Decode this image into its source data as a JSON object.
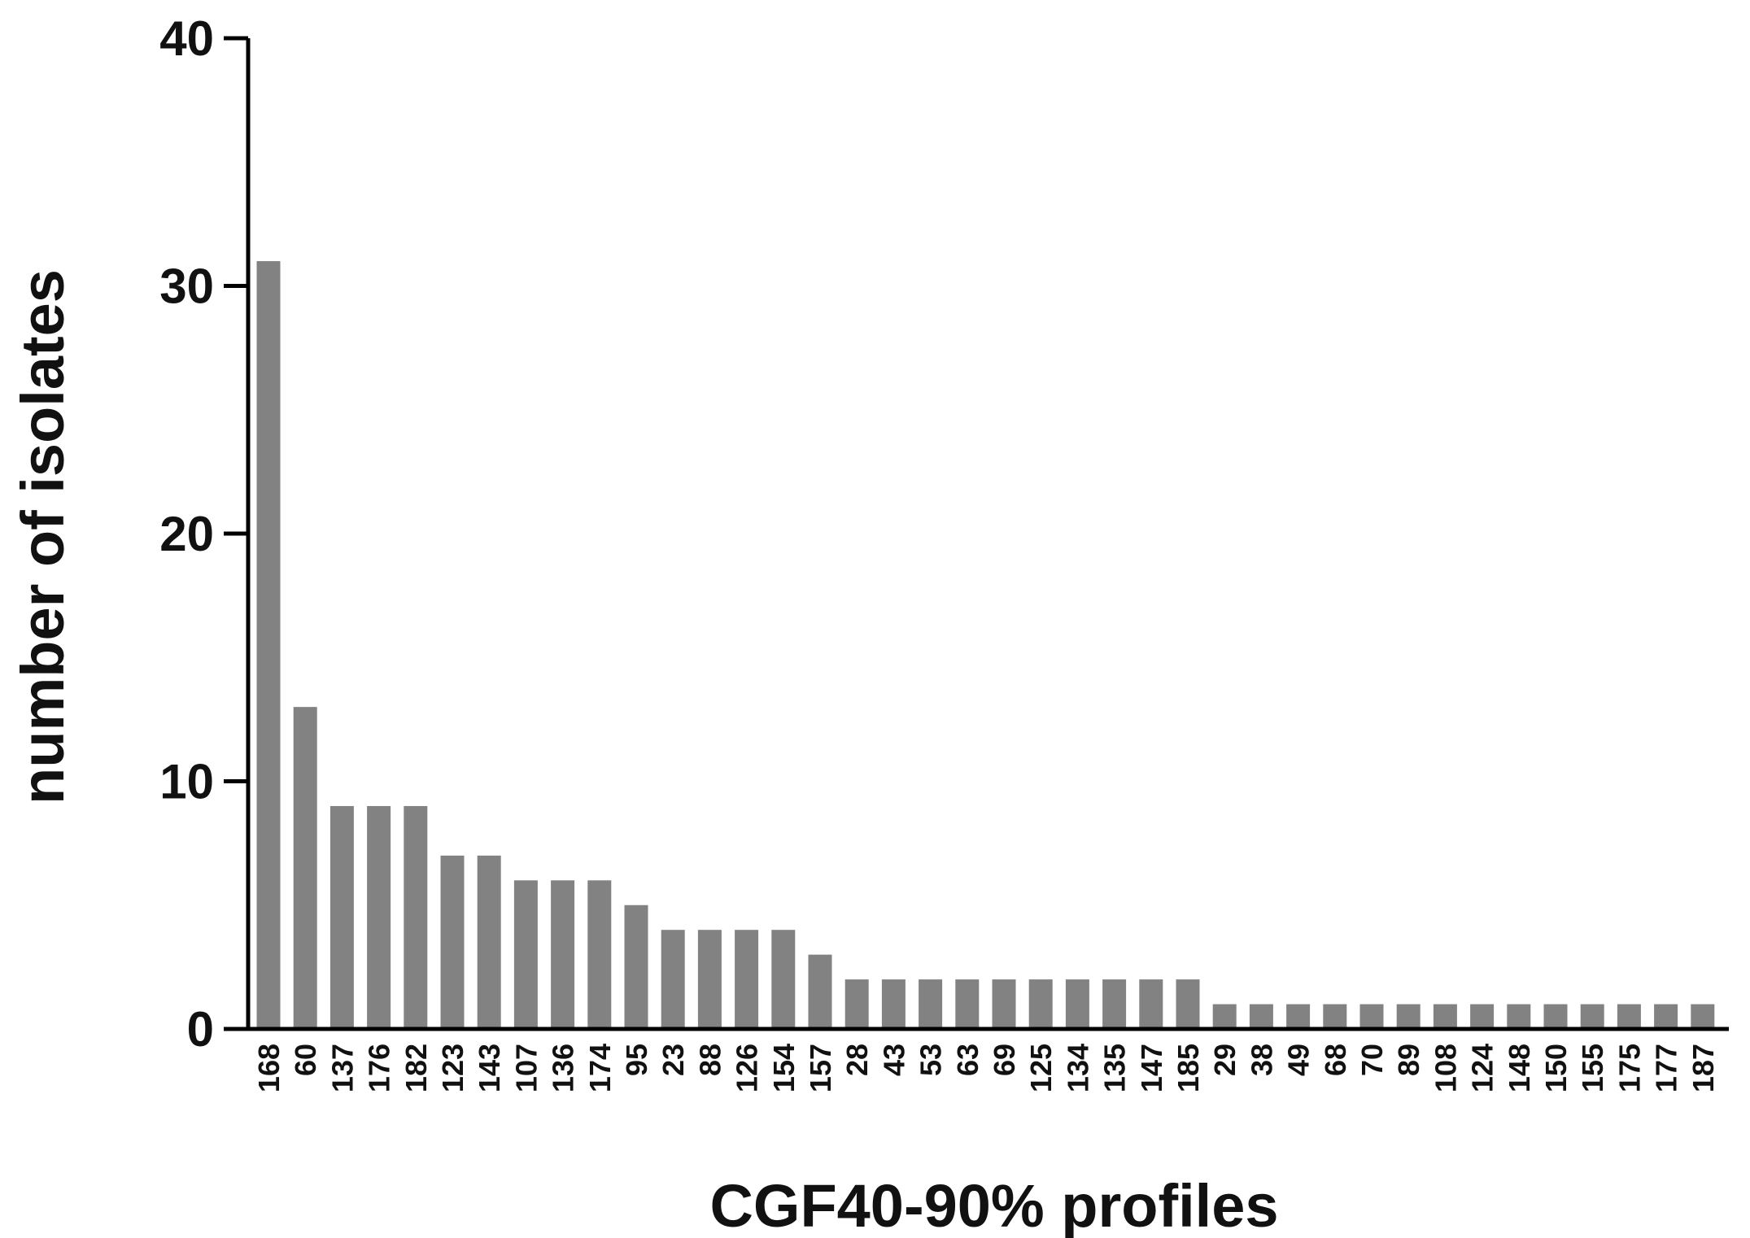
{
  "chart_data": {
    "type": "bar",
    "title": "",
    "xlabel": "CGF40-90% profiles",
    "ylabel": "number of isolates",
    "ylim": [
      0,
      40
    ],
    "yticks": [
      0,
      10,
      20,
      30,
      40
    ],
    "grid": false,
    "bar_color": "#828282",
    "categories": [
      "168",
      "60",
      "137",
      "176",
      "182",
      "123",
      "143",
      "107",
      "136",
      "174",
      "95",
      "23",
      "88",
      "126",
      "154",
      "157",
      "28",
      "43",
      "53",
      "63",
      "69",
      "125",
      "134",
      "135",
      "147",
      "185",
      "29",
      "38",
      "49",
      "68",
      "70",
      "89",
      "108",
      "124",
      "148",
      "150",
      "155",
      "175",
      "177",
      "187"
    ],
    "values": [
      31,
      13,
      9,
      9,
      9,
      7,
      7,
      6,
      6,
      6,
      5,
      4,
      4,
      4,
      4,
      3,
      2,
      2,
      2,
      2,
      2,
      2,
      2,
      2,
      2,
      2,
      1,
      1,
      1,
      1,
      1,
      1,
      1,
      1,
      1,
      1,
      1,
      1,
      1,
      1
    ]
  }
}
